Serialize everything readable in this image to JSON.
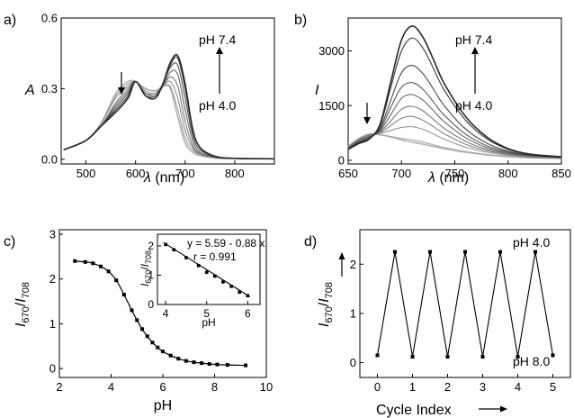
{
  "panels": {
    "a": {
      "label": "a)",
      "ylabel": "A",
      "xlabel": "λ (nm)",
      "ph_high": "pH 7.4",
      "ph_low": "pH 4.0"
    },
    "b": {
      "label": "b)",
      "ylabel": "I",
      "xlabel": "λ (nm)",
      "ph_high": "pH 7.4",
      "ph_low": "pH 4.0"
    },
    "c": {
      "label": "c)",
      "ylabel": "I670/I708",
      "xlabel": "pH",
      "inset": {
        "ylabel": "I670/I708",
        "xlabel": "pH",
        "equation": "y = 5.59 - 0.88 x",
        "r_value": "r = 0.991"
      }
    },
    "d": {
      "label": "d)",
      "ylabel": "I670/I708",
      "xlabel": "Cycle Index",
      "ph_top": "pH 4.0",
      "ph_bottom": "pH 8.0"
    }
  },
  "chart_data": [
    {
      "panel": "a",
      "type": "line",
      "title": "",
      "xlabel": "λ (nm)",
      "ylabel": "A",
      "xlim": [
        450,
        880
      ],
      "ylim": [
        -0.02,
        0.6
      ],
      "xticks": [
        500,
        600,
        700,
        800
      ],
      "yticks": [
        0.0,
        0.3,
        0.6
      ],
      "ytick_labels": [
        "0.0",
        "0.3",
        "0.6"
      ],
      "annotation": "Absorbance at 680 nm increases from pH 4.0 to pH 7.4; absorbance at 570 nm decreases",
      "series": [
        {
          "name": "pH 4.0",
          "x": [
            455,
            500,
            530,
            560,
            585,
            600,
            620,
            640,
            655,
            670,
            685,
            700,
            715,
            730,
            760,
            800,
            880
          ],
          "y": [
            0.04,
            0.08,
            0.15,
            0.28,
            0.33,
            0.33,
            0.3,
            0.29,
            0.31,
            0.3,
            0.18,
            0.07,
            0.03,
            0.015,
            0.005,
            0.003,
            0.002
          ]
        },
        {
          "series_step": 2,
          "x": [
            455,
            500,
            530,
            560,
            585,
            600,
            620,
            640,
            655,
            670,
            685,
            700,
            715,
            730,
            760,
            800,
            880
          ],
          "y": [
            0.04,
            0.08,
            0.15,
            0.27,
            0.32,
            0.33,
            0.3,
            0.29,
            0.31,
            0.31,
            0.21,
            0.09,
            0.04,
            0.02,
            0.006,
            0.003,
            0.002
          ]
        },
        {
          "series_step": 3,
          "x": [
            455,
            500,
            530,
            560,
            585,
            600,
            620,
            640,
            655,
            670,
            685,
            700,
            715,
            730,
            760,
            800,
            880
          ],
          "y": [
            0.04,
            0.08,
            0.15,
            0.26,
            0.31,
            0.33,
            0.29,
            0.28,
            0.31,
            0.33,
            0.26,
            0.12,
            0.05,
            0.02,
            0.007,
            0.003,
            0.002
          ]
        },
        {
          "series_step": 4,
          "x": [
            455,
            500,
            530,
            560,
            585,
            600,
            620,
            640,
            655,
            670,
            685,
            700,
            715,
            730,
            760,
            800,
            880
          ],
          "y": [
            0.04,
            0.08,
            0.14,
            0.24,
            0.3,
            0.33,
            0.28,
            0.28,
            0.31,
            0.35,
            0.31,
            0.16,
            0.06,
            0.025,
            0.008,
            0.003,
            0.002
          ]
        },
        {
          "series_step": 5,
          "x": [
            455,
            500,
            530,
            560,
            585,
            600,
            620,
            640,
            655,
            670,
            685,
            700,
            715,
            730,
            760,
            800,
            880
          ],
          "y": [
            0.04,
            0.08,
            0.14,
            0.23,
            0.29,
            0.33,
            0.28,
            0.27,
            0.31,
            0.37,
            0.36,
            0.21,
            0.08,
            0.03,
            0.009,
            0.003,
            0.002
          ]
        },
        {
          "series_step": 6,
          "x": [
            455,
            500,
            530,
            560,
            585,
            600,
            620,
            640,
            655,
            670,
            685,
            700,
            715,
            730,
            760,
            800,
            880
          ],
          "y": [
            0.04,
            0.08,
            0.14,
            0.22,
            0.28,
            0.33,
            0.27,
            0.27,
            0.32,
            0.39,
            0.4,
            0.26,
            0.1,
            0.04,
            0.01,
            0.003,
            0.002
          ]
        },
        {
          "series_step": 7,
          "x": [
            455,
            500,
            530,
            560,
            585,
            600,
            620,
            640,
            655,
            670,
            685,
            700,
            715,
            730,
            760,
            800,
            880
          ],
          "y": [
            0.04,
            0.08,
            0.14,
            0.21,
            0.27,
            0.33,
            0.27,
            0.26,
            0.32,
            0.4,
            0.43,
            0.3,
            0.12,
            0.05,
            0.012,
            0.004,
            0.002
          ]
        },
        {
          "name": "pH 7.4",
          "x": [
            455,
            500,
            530,
            560,
            585,
            600,
            620,
            640,
            655,
            670,
            685,
            700,
            715,
            730,
            760,
            800,
            880
          ],
          "y": [
            0.04,
            0.08,
            0.14,
            0.2,
            0.26,
            0.33,
            0.27,
            0.26,
            0.32,
            0.41,
            0.44,
            0.32,
            0.13,
            0.05,
            0.013,
            0.004,
            0.002
          ]
        }
      ]
    },
    {
      "panel": "b",
      "type": "line",
      "title": "",
      "xlabel": "λ (nm)",
      "ylabel": "I",
      "xlim": [
        650,
        850
      ],
      "ylim": [
        -100,
        3900
      ],
      "xticks": [
        650,
        700,
        750,
        800,
        850
      ],
      "yticks": [
        0,
        1500,
        3000
      ],
      "annotation": "Emission at 708 nm increases from pH 4.0 to pH 7.4; emission near 670 nm decreases",
      "series": [
        {
          "name": "pH 4.0",
          "x": [
            650,
            660,
            670,
            680,
            690,
            700,
            710,
            720,
            730,
            740,
            760,
            780,
            800,
            820,
            850
          ],
          "y": [
            380,
            600,
            720,
            700,
            640,
            560,
            500,
            440,
            380,
            320,
            220,
            150,
            100,
            70,
            50
          ]
        },
        {
          "series_step": 2,
          "x": [
            650,
            660,
            670,
            680,
            690,
            700,
            710,
            720,
            730,
            740,
            760,
            780,
            800,
            820,
            850
          ],
          "y": [
            380,
            600,
            720,
            700,
            650,
            600,
            560,
            500,
            420,
            350,
            240,
            160,
            110,
            75,
            55
          ]
        },
        {
          "series_step": 3,
          "x": [
            650,
            660,
            670,
            680,
            690,
            700,
            710,
            720,
            730,
            740,
            760,
            780,
            800,
            820,
            850
          ],
          "y": [
            370,
            590,
            710,
            740,
            820,
            900,
            920,
            850,
            720,
            580,
            360,
            220,
            140,
            90,
            60
          ]
        },
        {
          "series_step": 4,
          "x": [
            650,
            660,
            670,
            680,
            690,
            700,
            710,
            720,
            730,
            740,
            760,
            780,
            800,
            820,
            850
          ],
          "y": [
            360,
            570,
            690,
            760,
            950,
            1150,
            1200,
            1100,
            920,
            730,
            440,
            260,
            160,
            100,
            65
          ]
        },
        {
          "series_step": 5,
          "x": [
            650,
            660,
            670,
            680,
            690,
            700,
            710,
            720,
            730,
            740,
            760,
            780,
            800,
            820,
            850
          ],
          "y": [
            350,
            550,
            670,
            780,
            1080,
            1400,
            1480,
            1360,
            1120,
            880,
            520,
            300,
            180,
            110,
            70
          ]
        },
        {
          "series_step": 6,
          "x": [
            650,
            660,
            670,
            680,
            690,
            700,
            710,
            720,
            730,
            740,
            760,
            780,
            800,
            820,
            850
          ],
          "y": [
            340,
            530,
            650,
            810,
            1250,
            1700,
            1800,
            1650,
            1360,
            1060,
            620,
            350,
            200,
            120,
            75
          ]
        },
        {
          "series_step": 7,
          "x": [
            650,
            660,
            670,
            680,
            690,
            700,
            710,
            720,
            730,
            740,
            760,
            780,
            800,
            820,
            850
          ],
          "y": [
            330,
            510,
            630,
            840,
            1450,
            2000,
            2130,
            1950,
            1600,
            1240,
            720,
            400,
            220,
            130,
            80
          ]
        },
        {
          "series_step": 8,
          "x": [
            650,
            660,
            670,
            680,
            690,
            700,
            710,
            720,
            730,
            740,
            760,
            780,
            800,
            820,
            850
          ],
          "y": [
            320,
            490,
            610,
            880,
            1650,
            2400,
            2600,
            2380,
            1950,
            1500,
            860,
            470,
            250,
            140,
            85
          ]
        },
        {
          "series_step": 9,
          "x": [
            650,
            660,
            670,
            680,
            690,
            700,
            710,
            720,
            730,
            740,
            760,
            780,
            800,
            820,
            850
          ],
          "y": [
            310,
            470,
            600,
            950,
            2000,
            3000,
            3350,
            3080,
            2520,
            1930,
            1100,
            590,
            300,
            160,
            90
          ]
        },
        {
          "name": "pH 7.4",
          "x": [
            650,
            660,
            670,
            680,
            690,
            700,
            710,
            720,
            730,
            740,
            760,
            780,
            800,
            820,
            850
          ],
          "y": [
            300,
            460,
            590,
            1000,
            2150,
            3300,
            3680,
            3380,
            2760,
            2110,
            1200,
            640,
            320,
            170,
            95
          ]
        }
      ]
    },
    {
      "panel": "c",
      "type": "line",
      "title": "",
      "xlabel": "pH",
      "ylabel": "I670/I708",
      "xlim": [
        2,
        10
      ],
      "ylim": [
        -0.2,
        3.1
      ],
      "xticks": [
        2,
        4,
        6,
        8,
        10
      ],
      "yticks": [
        0,
        1,
        2,
        3
      ],
      "series": [
        {
          "x": [
            2.6,
            3.0,
            3.3,
            3.6,
            3.9,
            4.2,
            4.5,
            4.8,
            5.0,
            5.2,
            5.4,
            5.6,
            5.8,
            6.0,
            6.3,
            6.6,
            6.9,
            7.2,
            7.5,
            7.8,
            8.1,
            8.5,
            9.2
          ],
          "y": [
            2.4,
            2.38,
            2.35,
            2.28,
            2.17,
            1.97,
            1.65,
            1.3,
            1.08,
            0.88,
            0.72,
            0.58,
            0.47,
            0.38,
            0.29,
            0.22,
            0.17,
            0.14,
            0.12,
            0.1,
            0.09,
            0.08,
            0.07
          ]
        }
      ],
      "inset": {
        "type": "scatter",
        "xlabel": "pH",
        "ylabel": "I670/I708",
        "xlim": [
          3.8,
          6.3
        ],
        "ylim": [
          0,
          2.4
        ],
        "xticks": [
          4,
          5,
          6
        ],
        "yticks": [
          0,
          1,
          2
        ],
        "points": {
          "x": [
            4.0,
            4.2,
            4.5,
            4.8,
            5.0,
            5.2,
            5.4,
            5.6,
            5.8,
            6.0
          ],
          "y": [
            2.05,
            1.87,
            1.6,
            1.33,
            1.1,
            0.97,
            0.77,
            0.62,
            0.42,
            0.3
          ]
        },
        "fit": {
          "slope": -0.88,
          "intercept": 5.59,
          "equation": "y = 5.59 - 0.88 x",
          "r": 0.991
        }
      }
    },
    {
      "panel": "d",
      "type": "line",
      "title": "",
      "xlabel": "Cycle Index",
      "ylabel": "I670/I708",
      "xlim": [
        -0.5,
        5.5
      ],
      "ylim": [
        -0.3,
        2.7
      ],
      "xticks": [
        0,
        1,
        2,
        3,
        4,
        5
      ],
      "yticks": [
        0,
        1,
        2
      ],
      "series": [
        {
          "x": [
            0,
            0.5,
            1,
            1.5,
            2,
            2.5,
            3,
            3.5,
            4,
            4.5,
            5
          ],
          "y": [
            0.15,
            2.25,
            0.12,
            2.25,
            0.12,
            2.25,
            0.12,
            2.25,
            0.12,
            2.25,
            0.15
          ]
        }
      ]
    }
  ]
}
